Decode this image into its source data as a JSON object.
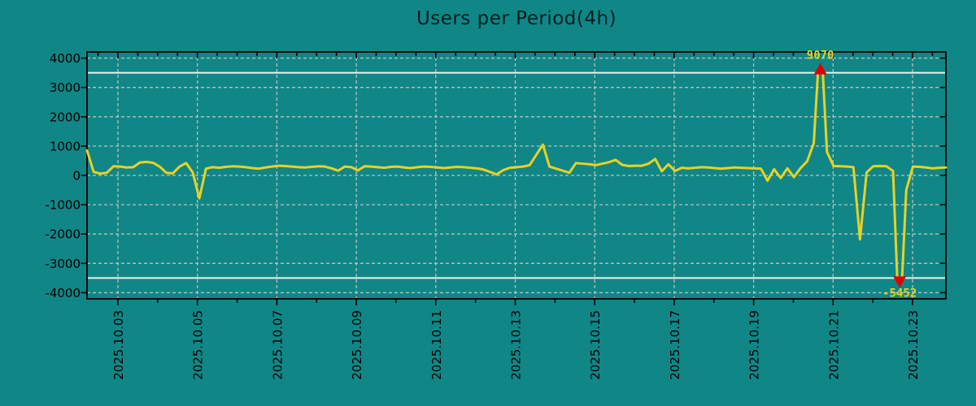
{
  "title": "Users per Period(4h)",
  "colors": {
    "background": "#108687",
    "line": "#e8d222",
    "grid": "#b9c1ba",
    "threshold": "#edf3ed",
    "marker": "#e10000",
    "text": "#000000",
    "annotation_text": "#e8d222"
  },
  "chart_data": {
    "type": "line",
    "title": "Users per Period(4h)",
    "sample_interval_hours": 4,
    "x_tick_labels": [
      "2025.10.03",
      "2025.10.05",
      "2025.10.07",
      "2025.10.09",
      "2025.10.11",
      "2025.10.13",
      "2025.10.15",
      "2025.10.17",
      "2025.10.19",
      "2025.10.21",
      "2025.10.23"
    ],
    "y_ticks": [
      -4000,
      -3000,
      -2000,
      -1000,
      0,
      1000,
      2000,
      3000,
      4000
    ],
    "ylim": [
      -4210,
      4210
    ],
    "grid": true,
    "threshold_lines": [
      3500,
      -3500
    ],
    "annotations": {
      "max": {
        "label": "9070",
        "value": 9070,
        "index": 111
      },
      "min": {
        "label": "-5452",
        "value": -5452,
        "index": 123
      }
    },
    "series": [
      {
        "name": "Users",
        "values": [
          850,
          120,
          60,
          90,
          310,
          300,
          270,
          280,
          440,
          460,
          430,
          300,
          90,
          70,
          300,
          420,
          100,
          -780,
          230,
          280,
          260,
          290,
          310,
          300,
          280,
          250,
          230,
          270,
          300,
          330,
          320,
          300,
          280,
          270,
          290,
          310,
          300,
          240,
          160,
          300,
          280,
          170,
          310,
          300,
          280,
          260,
          290,
          300,
          270,
          250,
          280,
          300,
          290,
          270,
          250,
          270,
          290,
          280,
          260,
          240,
          200,
          120,
          30,
          180,
          260,
          280,
          300,
          350,
          700,
          1050,
          300,
          230,
          160,
          90,
          420,
          400,
          380,
          350,
          400,
          450,
          530,
          360,
          320,
          330,
          330,
          400,
          560,
          140,
          380,
          150,
          260,
          240,
          260,
          280,
          270,
          250,
          230,
          250,
          270,
          260,
          250,
          240,
          230,
          -180,
          210,
          -90,
          240,
          -60,
          250,
          480,
          1100,
          9070,
          800,
          320,
          310,
          300,
          280,
          -2180,
          100,
          310,
          320,
          310,
          150,
          -5452,
          -500,
          300,
          290,
          270,
          240,
          260,
          270
        ]
      }
    ]
  }
}
